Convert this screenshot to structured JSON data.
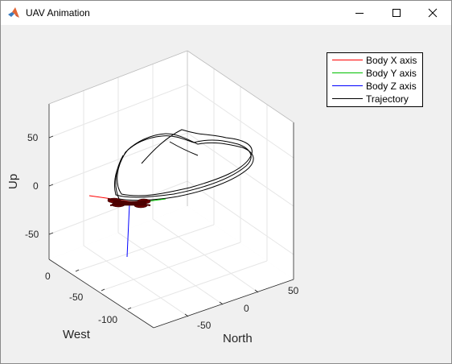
{
  "window": {
    "title": "UAV Animation",
    "controls": {
      "minimize": "minimize-icon",
      "maximize": "maximize-icon",
      "close": "close-icon"
    }
  },
  "colors": {
    "body_x": "#ff0000",
    "body_y": "#00ff00",
    "body_z": "#0000ff",
    "trajectory": "#000000",
    "uav": "#6b0000"
  },
  "legend": {
    "items": [
      {
        "label": "Body X axis",
        "color": "#ff0000"
      },
      {
        "label": "Body Y axis",
        "color": "#00c000"
      },
      {
        "label": "Body Z axis",
        "color": "#0000ff"
      },
      {
        "label": "Trajectory",
        "color": "#000000"
      }
    ]
  },
  "chart_data": {
    "type": "line3d",
    "zlabel": "Up",
    "xlabel": "North",
    "ylabel": "West",
    "zticks": [
      "50",
      "0",
      "-50"
    ],
    "north_ticks": [
      "-50",
      "0",
      "50"
    ],
    "west_ticks": [
      "0",
      "-50",
      "-100"
    ],
    "grid": true,
    "legend_placement": "top-right"
  }
}
